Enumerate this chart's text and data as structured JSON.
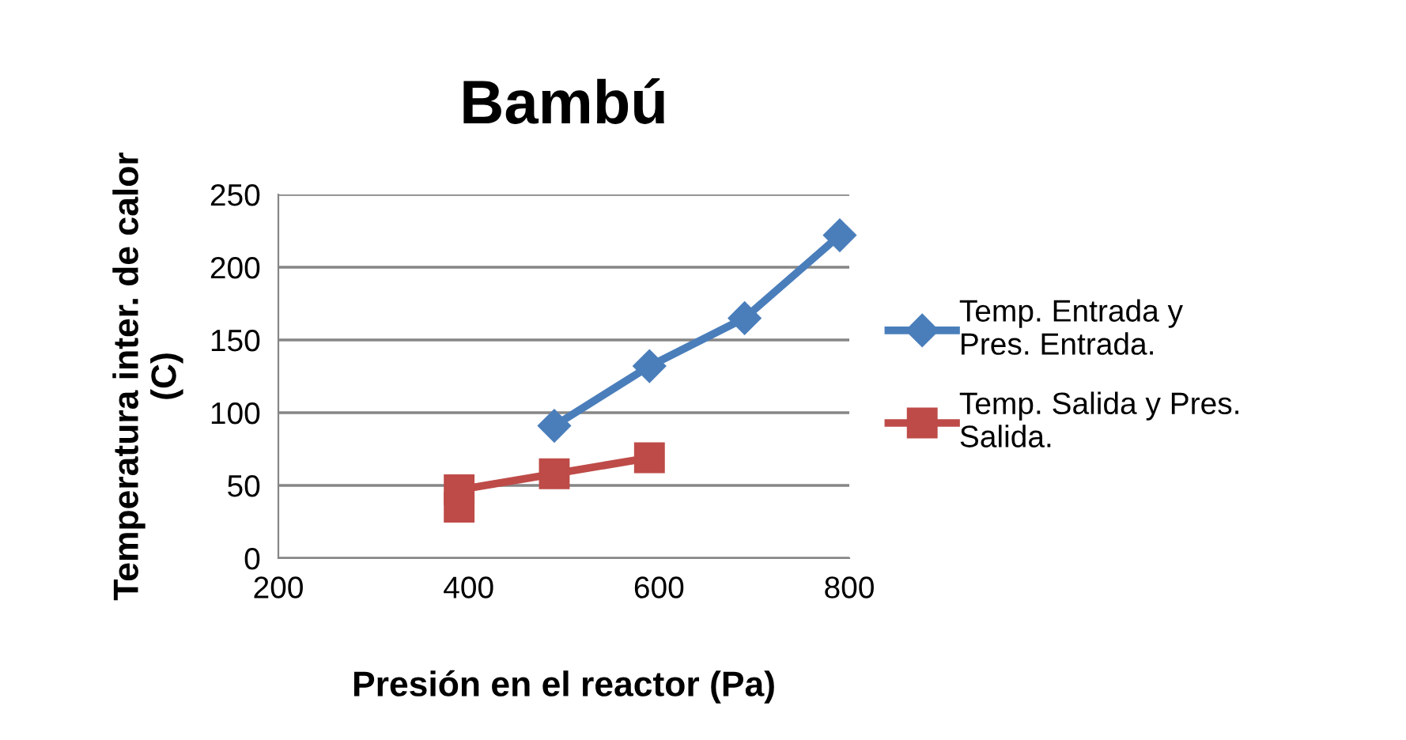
{
  "chart_data": {
    "type": "line",
    "title": "Bambú",
    "xlabel": "Presión en el reactor (Pa)",
    "ylabel": "Temperatura inter. de calor\n(C)",
    "xlim": [
      200,
      800
    ],
    "xticks": [
      200,
      400,
      600,
      800
    ],
    "ylim": [
      0,
      250
    ],
    "yticks": [
      0,
      50,
      100,
      150,
      200,
      250
    ],
    "grid": "y",
    "legend": "right",
    "line_style": "solid",
    "series": [
      {
        "name": "Temp. Entrada y\nPres. Entrada.",
        "color": "#4a7ebb",
        "marker": "diamond",
        "x": [
          490,
          590,
          690,
          790
        ],
        "values": [
          91,
          132,
          165,
          222
        ]
      },
      {
        "name": "Temp. Salida y Pres.\nSalida.",
        "color": "#be4b48",
        "marker": "square",
        "x": [
          390,
          390,
          490,
          590
        ],
        "values": [
          35,
          47,
          58,
          69
        ]
      }
    ]
  }
}
